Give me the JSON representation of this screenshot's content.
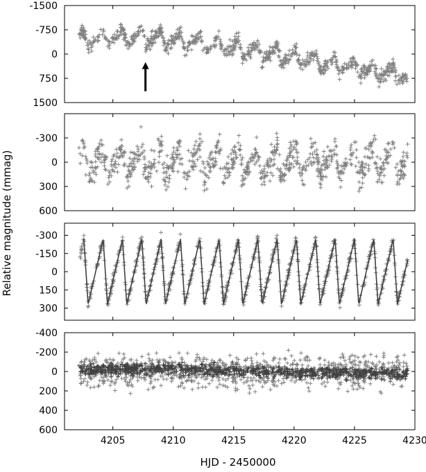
{
  "colors": {
    "light": "#808080",
    "dark": "#404040",
    "frame": "#000000"
  },
  "chart_data": {
    "type": "scatter",
    "xlabel": "HJD - 2450000",
    "ylabel": "Relative magnitude (mmag)",
    "xlim": [
      4201,
      4230
    ],
    "xticks": [
      4205,
      4210,
      4215,
      4220,
      4225,
      4230
    ],
    "panels": [
      {
        "id": "panel-1",
        "ylim": [
          1500,
          -1500
        ],
        "yticks": [
          -1500,
          -750,
          0,
          750,
          1500
        ],
        "annotation": {
          "type": "arrow",
          "x": 4207.7,
          "y_tip": 250,
          "y_tail": 1150
        },
        "series": [
          {
            "kind": "points",
            "color": "light",
            "x_range": [
              4202.2,
              4229.4
            ],
            "trend": [
              [
                4202.2,
                -450
              ],
              [
                4207,
                -550
              ],
              [
                4215,
                -200
              ],
              [
                4222,
                250
              ],
              [
                4229.4,
                700
              ]
            ],
            "period": 1.6,
            "amplitude": 280,
            "scatter": 200
          }
        ]
      },
      {
        "id": "panel-2",
        "ylim": [
          600,
          -600
        ],
        "yticks": [
          -300,
          0,
          300,
          600
        ],
        "series": [
          {
            "kind": "points",
            "color": "light",
            "x_range": [
              4202.2,
              4229.4
            ],
            "trend": [
              [
                4202.2,
                0
              ],
              [
                4229.4,
                0
              ]
            ],
            "period": 1.6,
            "amplitude": 200,
            "scatter": 170
          }
        ]
      },
      {
        "id": "panel-3",
        "ylim": [
          400,
          -400
        ],
        "yticks": [
          -300,
          -150,
          0,
          150,
          300
        ],
        "series": [
          {
            "kind": "points",
            "color": "light",
            "x_range": [
              4202.2,
              4229.4
            ],
            "trend": [
              [
                4202.2,
                0
              ],
              [
                4229.4,
                0
              ]
            ],
            "period": 1.6,
            "amplitude": 270,
            "scatter": 40
          },
          {
            "kind": "line",
            "color": "dark",
            "x_range": [
              4202.6,
              4229.4
            ],
            "trend": [
              [
                4202.6,
                0
              ],
              [
                4229.4,
                0
              ]
            ],
            "period": 1.6,
            "amplitude": 270
          }
        ]
      },
      {
        "id": "panel-4",
        "ylim": [
          600,
          -400
        ],
        "yticks": [
          -400,
          -200,
          0,
          200,
          400,
          600
        ],
        "series": [
          {
            "kind": "points",
            "color": "light",
            "x_range": [
              4202.2,
              4229.4
            ],
            "trend": [
              [
                4202.2,
                0
              ],
              [
                4229.4,
                0
              ]
            ],
            "period": 0,
            "amplitude": 0,
            "scatter": 160
          },
          {
            "kind": "points",
            "color": "dark",
            "x_range": [
              4202.2,
              4229.4
            ],
            "trend": [
              [
                4202.2,
                -20
              ],
              [
                4210,
                -30
              ],
              [
                4218,
                10
              ],
              [
                4229.4,
                20
              ]
            ],
            "period": 0,
            "amplitude": 0,
            "scatter": 55
          }
        ]
      }
    ]
  }
}
